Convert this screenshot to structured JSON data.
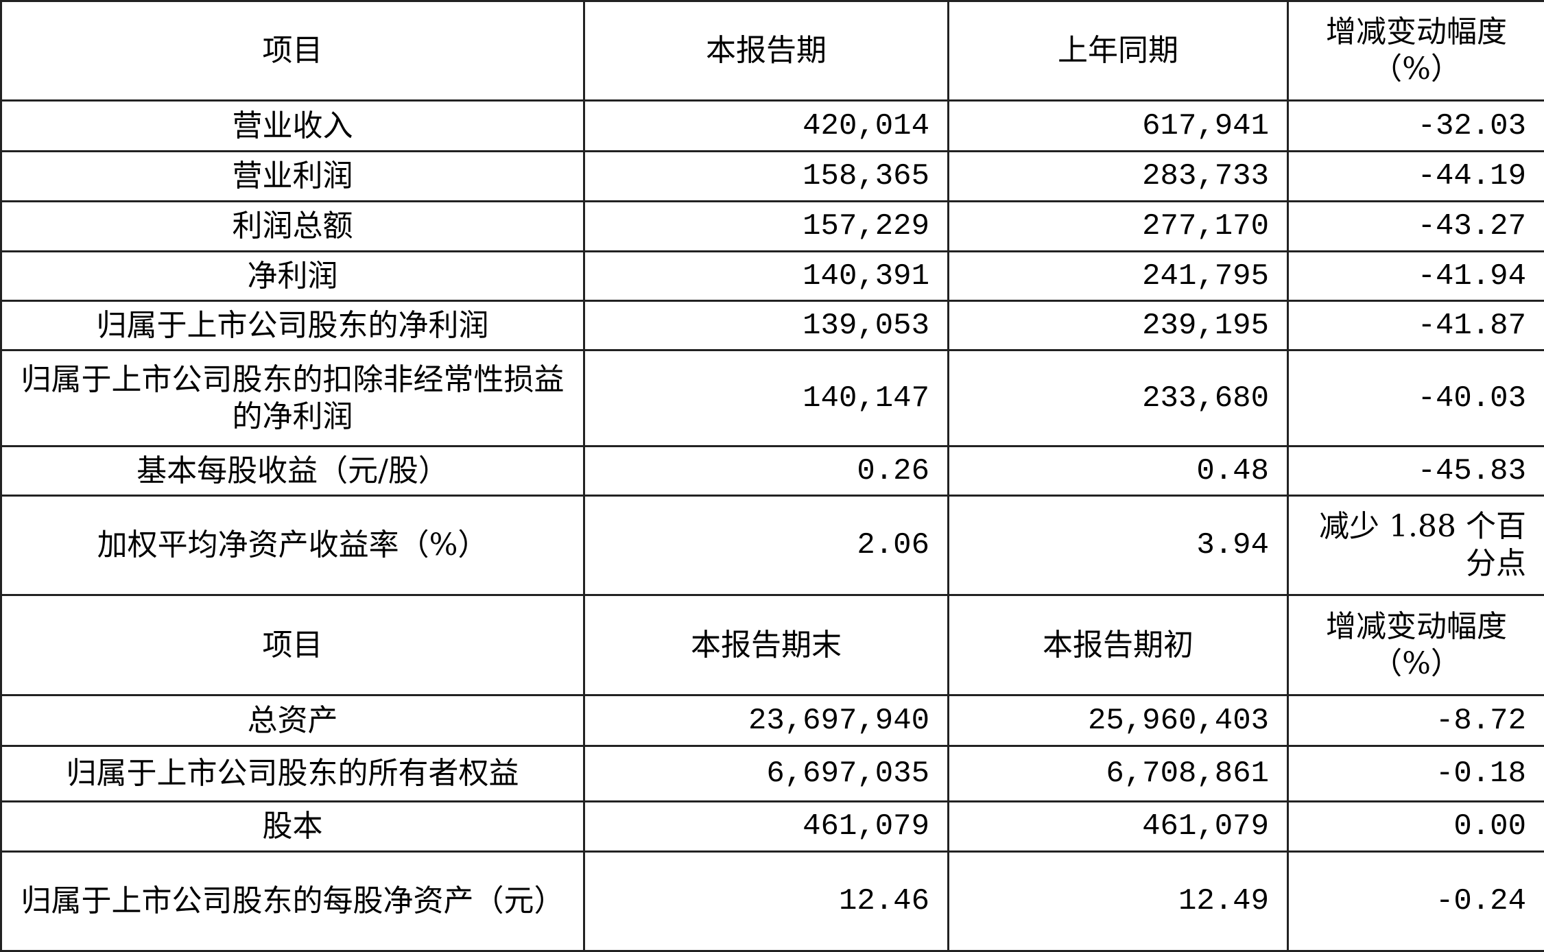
{
  "section1": {
    "headers": [
      "项目",
      "本报告期",
      "上年同期",
      "增减变动幅度（%）"
    ],
    "rows": [
      {
        "item": "营业收入",
        "current": "420,014",
        "prior": "617,941",
        "change": "-32.03"
      },
      {
        "item": "营业利润",
        "current": "158,365",
        "prior": "283,733",
        "change": "-44.19"
      },
      {
        "item": "利润总额",
        "current": "157,229",
        "prior": "277,170",
        "change": "-43.27"
      },
      {
        "item": "净利润",
        "current": "140,391",
        "prior": "241,795",
        "change": "-41.94"
      },
      {
        "item": "归属于上市公司股东的净利润",
        "current": "139,053",
        "prior": "239,195",
        "change": "-41.87"
      },
      {
        "item": "归属于上市公司股东的扣除非经常性损益的净利润",
        "current": "140,147",
        "prior": "233,680",
        "change": "-40.03"
      },
      {
        "item": "基本每股收益（元/股）",
        "current": "0.26",
        "prior": "0.48",
        "change": "-45.83"
      },
      {
        "item": "加权平均净资产收益率（%）",
        "current": "2.06",
        "prior": "3.94",
        "change": "减少 1.88 个百分点"
      }
    ]
  },
  "section2": {
    "headers": [
      "项目",
      "本报告期末",
      "本报告期初",
      "增减变动幅度（%）"
    ],
    "rows": [
      {
        "item": "总资产",
        "current": "23,697,940",
        "prior": "25,960,403",
        "change": "-8.72"
      },
      {
        "item": "归属于上市公司股东的所有者权益",
        "current": "6,697,035",
        "prior": "6,708,861",
        "change": "-0.18"
      },
      {
        "item": "股本",
        "current": "461,079",
        "prior": "461,079",
        "change": "0.00"
      },
      {
        "item": "归属于上市公司股东的每股净资产（元）",
        "current": "12.46",
        "prior": "12.49",
        "change": "-0.24"
      }
    ]
  }
}
